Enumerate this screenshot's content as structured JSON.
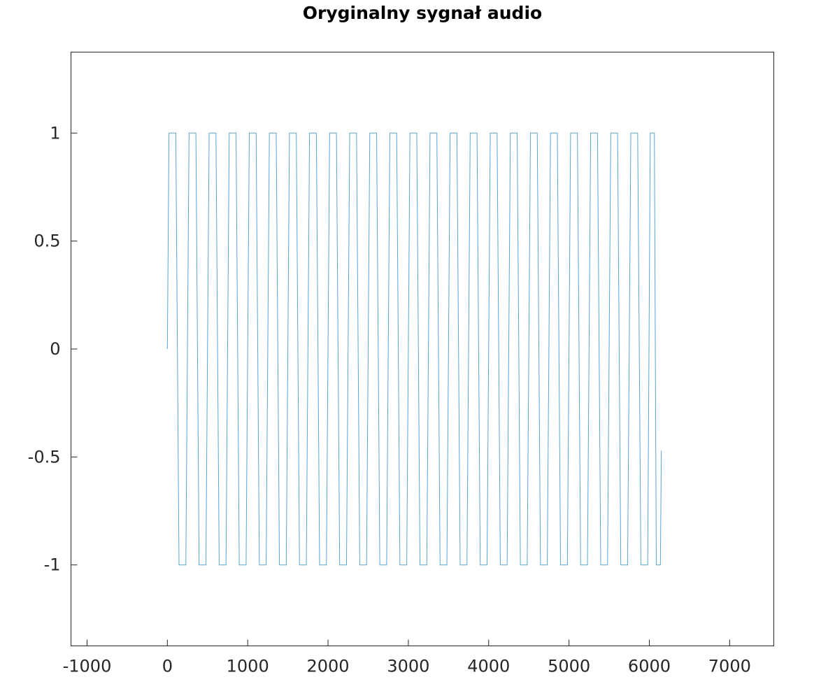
{
  "chart_data": {
    "type": "line",
    "title": "Oryginalny sygnał audio",
    "xlabel": "",
    "ylabel": "",
    "xlim": [
      -1200,
      7550
    ],
    "ylim": [
      -1.375,
      1.375
    ],
    "x_ticks": [
      -1000,
      0,
      1000,
      2000,
      3000,
      4000,
      5000,
      6000,
      7000
    ],
    "x_tick_labels": [
      "-1000",
      "0",
      "1000",
      "2000",
      "3000",
      "4000",
      "5000",
      "6000",
      "7000"
    ],
    "y_ticks": [
      1,
      0.5,
      0,
      -0.5,
      -1
    ],
    "y_tick_labels": [
      "1",
      "0.5",
      "0",
      "-0.5",
      "-1"
    ],
    "grid": false,
    "legend": "none",
    "series": [
      {
        "signal": "square-wave chirp, frequency increasing linearly with sample index",
        "x_start": 0,
        "x_end": 6150,
        "y_min": -1,
        "y_max": 1,
        "y_first": 0,
        "y_last": -0.47,
        "half_cycle_rises": [
          0,
          250,
          500,
          720,
          940,
          1140,
          1330,
          1520
        ],
        "color": "#5aa5d6"
      }
    ]
  }
}
